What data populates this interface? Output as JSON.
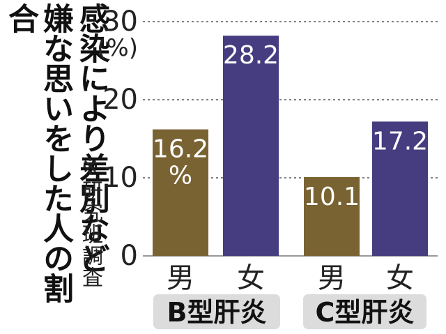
{
  "title_lines": [
    "感染により差別など",
    "嫌な思いをした人の割合"
  ],
  "note": "※研究班調査",
  "colors": {
    "male": "#7a6332",
    "female": "#453d80",
    "group_bg": "#dcdcdc",
    "grid": "#555555",
    "label_on_bar": "#ffffff"
  },
  "chart_data": {
    "type": "bar",
    "unit": "(%)",
    "ylim": [
      0,
      30
    ],
    "yticks": [
      0,
      10,
      20,
      30
    ],
    "grid": "dashed",
    "groups": [
      {
        "name": "B型肝炎",
        "bars": [
          {
            "category": "男",
            "value": 16.2,
            "label": "16.2\n%"
          },
          {
            "category": "女",
            "value": 28.2,
            "label": "28.2"
          }
        ]
      },
      {
        "name": "C型肝炎",
        "bars": [
          {
            "category": "男",
            "value": 10.1,
            "label": "10.1"
          },
          {
            "category": "女",
            "value": 17.2,
            "label": "17.2"
          }
        ]
      }
    ]
  }
}
